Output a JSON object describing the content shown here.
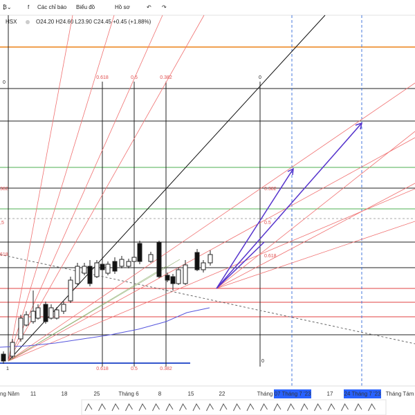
{
  "toolbar": {
    "indicators": "Các chỉ báo",
    "chart": "Biểu đồ",
    "profile": "Hồ sơ"
  },
  "legend": {
    "symbol": "HSX",
    "ohlc": "O24.20 H24.60 L23.90 C24.45 +0.45 (+1.88%)"
  },
  "fib_top": [
    "0.618",
    "0.5",
    "0.382",
    "0"
  ],
  "fib_bottom": [
    "0.618",
    "0.5",
    "0.382",
    "0"
  ],
  "fib_right": [
    "0.382",
    "0.5",
    "0.618"
  ],
  "fib_left": [
    "0",
    "382",
    ",5",
    "618"
  ],
  "corner_label": "1",
  "x_axis": [
    "ng Năm",
    "11",
    "18",
    "25",
    "Tháng 6",
    "8",
    "15",
    "22",
    "Tháng",
    "07 Tháng 7 '23",
    "17",
    "24 Tháng 7 '23",
    "Tháng Tám"
  ]
}
